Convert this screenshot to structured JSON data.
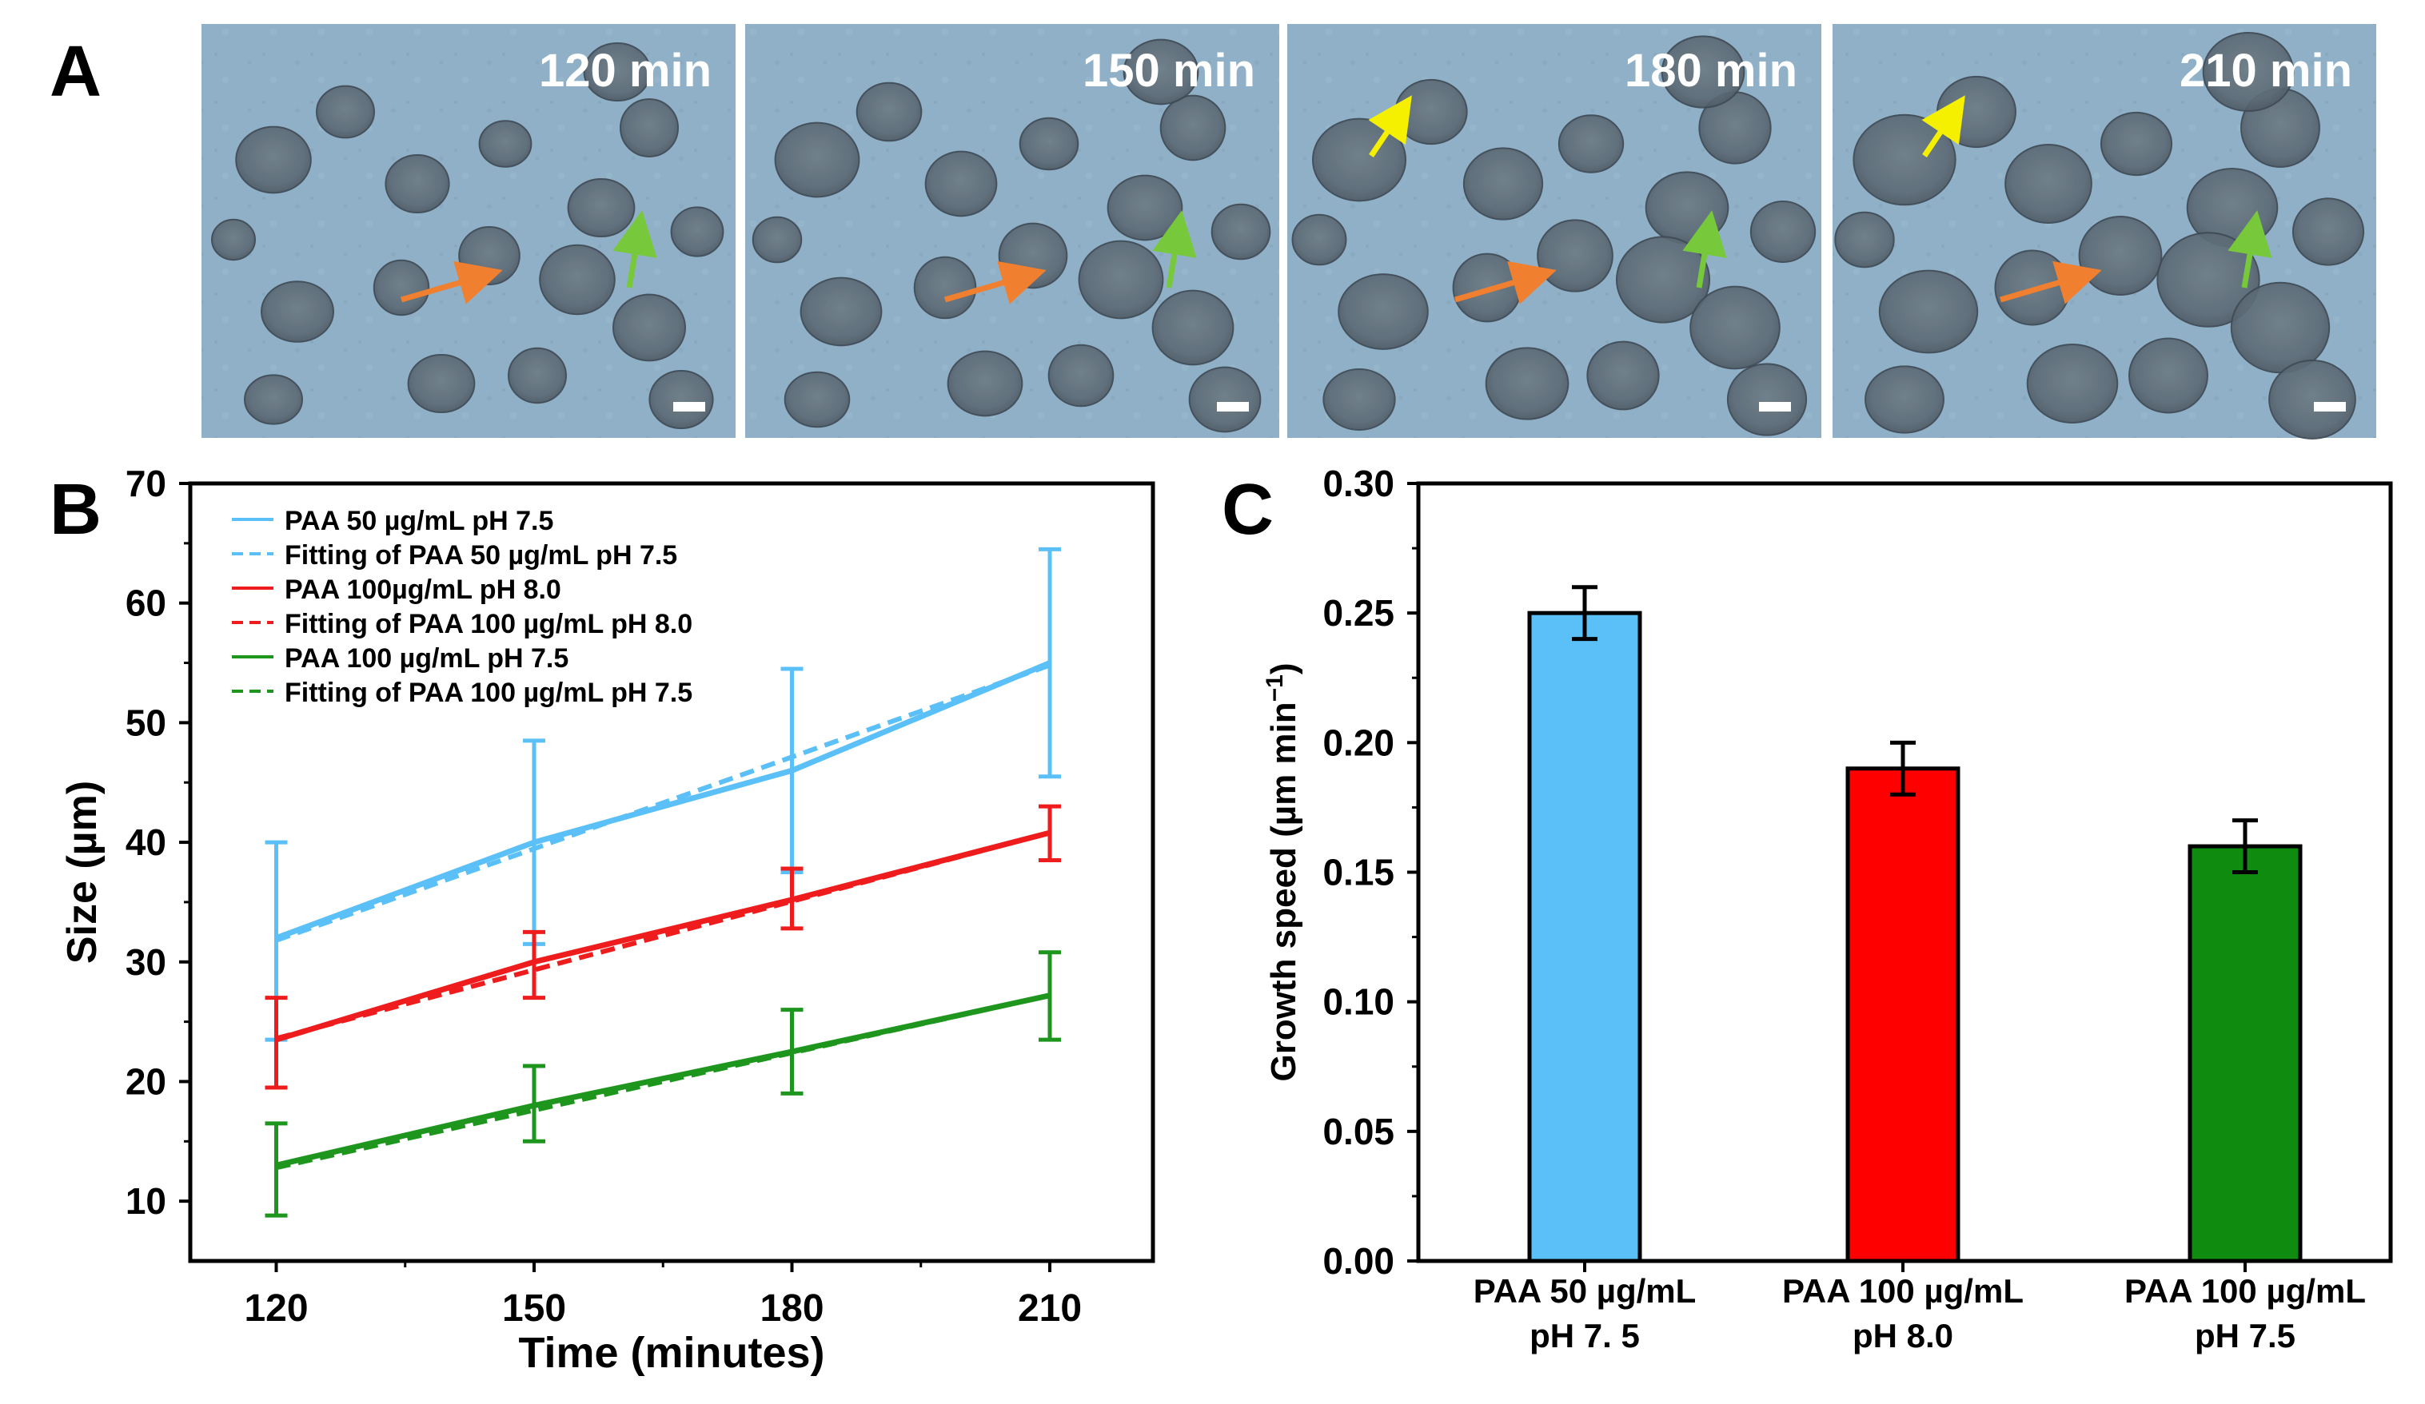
{
  "panels": {
    "A": {
      "letter": "A",
      "micrographs": [
        {
          "time_label": "120 min",
          "arrows": [
            "orange-arrow",
            "green-arrow"
          ]
        },
        {
          "time_label": "150 min",
          "arrows": [
            "orange-arrow",
            "green-arrow"
          ]
        },
        {
          "time_label": "180 min",
          "arrows": [
            "orange-arrow",
            "green-arrow",
            "yellow-arrow"
          ]
        },
        {
          "time_label": "210 min",
          "arrows": [
            "orange-arrow",
            "green-arrow",
            "yellow-arrow"
          ]
        }
      ],
      "colors": {
        "background": "#8fb0c6",
        "orange_arrow": "#f08030",
        "green_arrow": "#78c83c",
        "yellow_arrow": "#f5f000"
      }
    },
    "B": {
      "letter": "B"
    },
    "C": {
      "letter": "C"
    }
  },
  "chart_data": [
    {
      "type": "line",
      "panel": "B",
      "xlabel": "Time (minutes)",
      "ylabel": "Size (µm)",
      "x": [
        120,
        150,
        180,
        210
      ],
      "xticks": [
        "120",
        "150",
        "180",
        "210"
      ],
      "yticks": [
        "10",
        "20",
        "30",
        "40",
        "50",
        "60",
        "70"
      ],
      "xlim": [
        110,
        222
      ],
      "ylim": [
        5,
        70
      ],
      "legend_position": "top-left",
      "series": [
        {
          "name": "PAA 50 µg/mL  pH 7.5",
          "color": "#5bc0f8",
          "style": "solid",
          "values": [
            32,
            40,
            46,
            55
          ],
          "err_low": [
            23.5,
            31.5,
            37.5,
            45.5
          ],
          "err_high": [
            40,
            48.5,
            54.5,
            64.5
          ]
        },
        {
          "name": "Fitting of PAA 50 µg/mL  pH 7.5",
          "color": "#5bc0f8",
          "style": "dashed",
          "fit": [
            31.8,
            54.8
          ]
        },
        {
          "name": "PAA 100µg/mL  pH 8.0",
          "color": "#ee1c1c",
          "style": "solid",
          "values": [
            23.5,
            30,
            35.2,
            40.8
          ],
          "err_low": [
            19.5,
            27,
            32.8,
            38.5
          ],
          "err_high": [
            27,
            32.5,
            37.8,
            43
          ]
        },
        {
          "name": "Fitting of PAA 100 µg/mL  pH 8.0",
          "color": "#ee1c1c",
          "style": "dashed",
          "fit": [
            23.6,
            40.8
          ]
        },
        {
          "name": "PAA 100 µg/mL  pH 7.5",
          "color": "#1e961e",
          "style": "solid",
          "values": [
            13,
            18,
            22.5,
            27.2
          ],
          "err_low": [
            8.8,
            15,
            19,
            23.5
          ],
          "err_high": [
            16.5,
            21.3,
            26,
            30.8
          ]
        },
        {
          "name": "Fitting of PAA 100 µg/mL  pH 7.5",
          "color": "#1e961e",
          "style": "dashed",
          "fit": [
            12.8,
            27.2
          ]
        }
      ]
    },
    {
      "type": "bar",
      "panel": "C",
      "ylabel": "Growth speed (µm min",
      "ylabel_sup": "−1",
      "ylabel_close": ")",
      "ylim": [
        0,
        0.3
      ],
      "yticks": [
        "0.00",
        "0.05",
        "0.10",
        "0.15",
        "0.20",
        "0.25",
        "0.30"
      ],
      "categories": [
        {
          "line1": "PAA 50 µg/mL",
          "line2": "pH 7. 5"
        },
        {
          "line1": "PAA 100 µg/mL",
          "line2": "pH 8.0"
        },
        {
          "line1": "PAA 100 µg/mL",
          "line2": "pH 7.5"
        }
      ],
      "values": [
        0.25,
        0.19,
        0.16
      ],
      "errors": [
        0.01,
        0.01,
        0.01
      ],
      "colors": [
        "#5bc0f8",
        "#ff0000",
        "#0f8c0f"
      ]
    }
  ]
}
